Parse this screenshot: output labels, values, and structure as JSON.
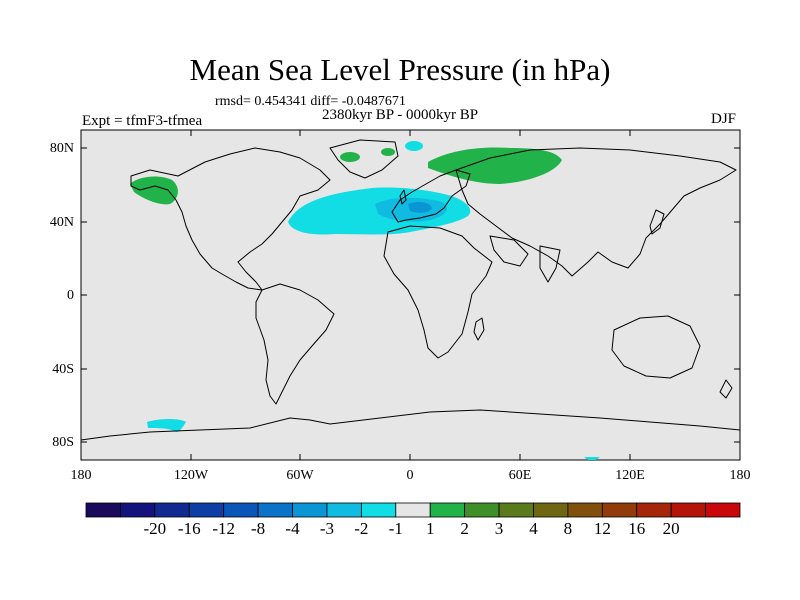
{
  "title": "Mean Sea Level Pressure (in hPa)",
  "stats": "rmsd= 0.454341 diff= -0.0487671",
  "period": "2380kyr BP - 0000kyr BP",
  "experiment": "Expt = tfmF3-tfmea",
  "season": "DJF",
  "lat_labels": [
    "80N",
    "40N",
    "0",
    "40S",
    "80S"
  ],
  "lon_labels": [
    "180",
    "120W",
    "60W",
    "0",
    "60E",
    "120E",
    "180"
  ],
  "colorbar": {
    "labels": [
      "-20",
      "-16",
      "-12",
      "-8",
      "-4",
      "-3",
      "-2",
      "-1",
      "1",
      "2",
      "3",
      "4",
      "8",
      "12",
      "16",
      "20"
    ],
    "colors": [
      "#1a0a5c",
      "#14137e",
      "#102a91",
      "#0d3ea6",
      "#0a55b8",
      "#0a72c8",
      "#0a96d4",
      "#0fbbe0",
      "#12dde4",
      "#e6e6e6",
      "#22b24a",
      "#3f8f28",
      "#5b7a1c",
      "#6e6612",
      "#80500c",
      "#913a0a",
      "#a52608",
      "#b51408",
      "#c8080a"
    ]
  },
  "colors": {
    "map_background": "#e6e6e6",
    "anomaly_neg_1": "#12dde4",
    "anomaly_neg_2": "#0fbbe0",
    "anomaly_neg_3": "#0a96d4",
    "anomaly_pos_1": "#22b24a"
  }
}
